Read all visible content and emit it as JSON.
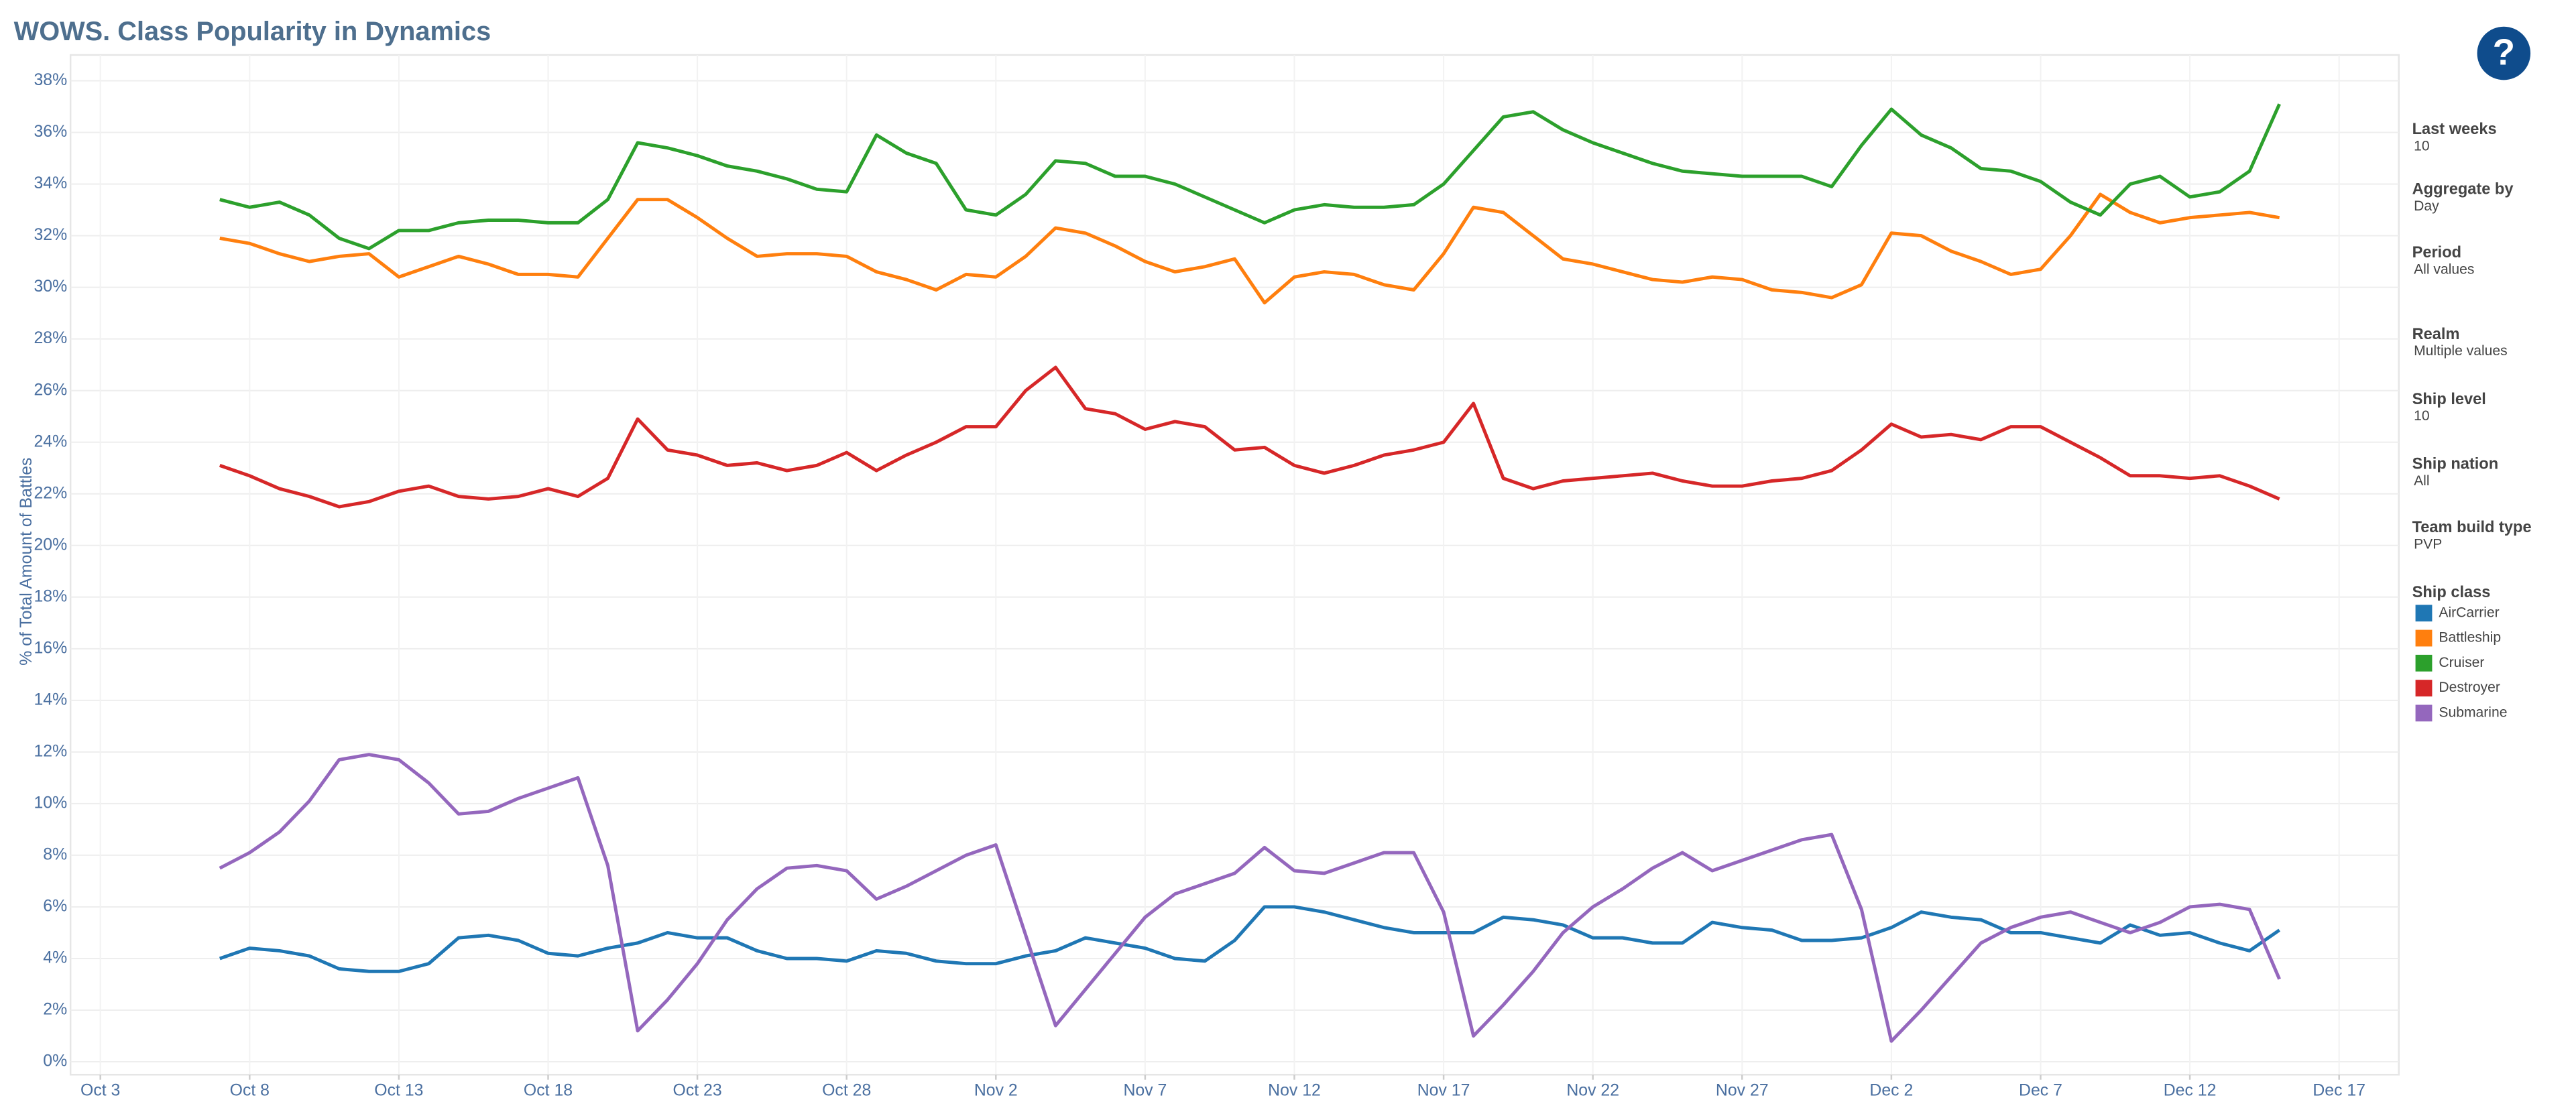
{
  "chart_data": {
    "type": "line",
    "title": "WOWS. Class Popularity in Dynamics",
    "y_label": "% of Total Amount of Battles",
    "x": [
      "Oct 7",
      "Oct 8",
      "Oct 9",
      "Oct 10",
      "Oct 11",
      "Oct 12",
      "Oct 13",
      "Oct 14",
      "Oct 15",
      "Oct 16",
      "Oct 17",
      "Oct 18",
      "Oct 19",
      "Oct 20",
      "Oct 21",
      "Oct 22",
      "Oct 23",
      "Oct 24",
      "Oct 25",
      "Oct 26",
      "Oct 27",
      "Oct 28",
      "Oct 29",
      "Oct 30",
      "Oct 31",
      "Nov 1",
      "Nov 2",
      "Nov 3",
      "Nov 4",
      "Nov 5",
      "Nov 6",
      "Nov 7",
      "Nov 8",
      "Nov 9",
      "Nov 10",
      "Nov 11",
      "Nov 12",
      "Nov 13",
      "Nov 14",
      "Nov 15",
      "Nov 16",
      "Nov 17",
      "Nov 18",
      "Nov 19",
      "Nov 20",
      "Nov 21",
      "Nov 22",
      "Nov 23",
      "Nov 24",
      "Nov 25",
      "Nov 26",
      "Nov 27",
      "Nov 28",
      "Nov 29",
      "Nov 30",
      "Dec 1",
      "Dec 2",
      "Dec 3",
      "Dec 4",
      "Dec 5",
      "Dec 6",
      "Dec 7",
      "Dec 8",
      "Dec 9",
      "Dec 10",
      "Dec 11",
      "Dec 12",
      "Dec 13",
      "Dec 14",
      "Dec 15"
    ],
    "xlim": [
      "Oct 2",
      "Dec 19"
    ],
    "xticks": [
      "Oct 3",
      "Oct 8",
      "Oct 13",
      "Oct 18",
      "Oct 23",
      "Oct 28",
      "Nov 2",
      "Nov 7",
      "Nov 12",
      "Nov 17",
      "Nov 22",
      "Nov 27",
      "Dec 2",
      "Dec 7",
      "Dec 12",
      "Dec 17"
    ],
    "ylim": [
      -0.5,
      39
    ],
    "yticks": [
      {
        "value": 0,
        "label": "0%"
      },
      {
        "value": 2,
        "label": "2%"
      },
      {
        "value": 4,
        "label": "4%"
      },
      {
        "value": 6,
        "label": "6%"
      },
      {
        "value": 8,
        "label": "8%"
      },
      {
        "value": 10,
        "label": "10%"
      },
      {
        "value": 12,
        "label": "12%"
      },
      {
        "value": 14,
        "label": "14%"
      },
      {
        "value": 16,
        "label": "16%"
      },
      {
        "value": 18,
        "label": "18%"
      },
      {
        "value": 20,
        "label": "20%"
      },
      {
        "value": 22,
        "label": "22%"
      },
      {
        "value": 24,
        "label": "24%"
      },
      {
        "value": 26,
        "label": "26%"
      },
      {
        "value": 28,
        "label": "28%"
      },
      {
        "value": 30,
        "label": "30%"
      },
      {
        "value": 32,
        "label": "32%"
      },
      {
        "value": 34,
        "label": "34%"
      },
      {
        "value": 36,
        "label": "36%"
      },
      {
        "value": 38,
        "label": "38%"
      }
    ],
    "grid": true,
    "legend_title": "Ship class",
    "series": [
      {
        "name": "AirCarrier",
        "color": "#1f77b4",
        "values": [
          4.0,
          4.4,
          4.3,
          4.1,
          3.6,
          3.5,
          3.5,
          3.8,
          4.8,
          4.9,
          4.7,
          4.2,
          4.1,
          4.4,
          4.6,
          5.0,
          4.8,
          4.8,
          4.3,
          4.0,
          4.0,
          3.9,
          4.3,
          4.2,
          3.9,
          3.8,
          3.8,
          4.1,
          4.3,
          4.8,
          4.6,
          4.4,
          4.0,
          3.9,
          4.7,
          6.0,
          6.0,
          5.8,
          5.5,
          5.2,
          5.0,
          5.0,
          5.0,
          5.6,
          5.5,
          5.3,
          4.8,
          4.8,
          4.6,
          4.6,
          5.4,
          5.2,
          5.1,
          4.7,
          4.7,
          4.8,
          5.2,
          5.8,
          5.6,
          5.5,
          5.0,
          5.0,
          4.8,
          4.6,
          5.3,
          4.9,
          5.0,
          4.6,
          4.3,
          5.1
        ]
      },
      {
        "name": "Battleship",
        "color": "#ff7f0e",
        "values": [
          31.9,
          31.7,
          31.3,
          31.0,
          31.2,
          31.3,
          30.4,
          30.8,
          31.2,
          30.9,
          30.5,
          30.5,
          30.4,
          31.9,
          33.4,
          33.4,
          32.7,
          31.9,
          31.2,
          31.3,
          31.3,
          31.2,
          30.6,
          30.3,
          29.9,
          30.5,
          30.4,
          31.2,
          32.3,
          32.1,
          31.6,
          31.0,
          30.6,
          30.8,
          31.1,
          29.4,
          30.4,
          30.6,
          30.5,
          30.1,
          29.9,
          31.3,
          33.1,
          32.9,
          32.0,
          31.1,
          30.9,
          30.6,
          30.3,
          30.2,
          30.4,
          30.3,
          29.9,
          29.8,
          29.6,
          30.1,
          32.1,
          32.0,
          31.4,
          31.0,
          30.5,
          30.7,
          32.0,
          33.6,
          32.9,
          32.5,
          32.7,
          32.8,
          32.9,
          32.7
        ]
      },
      {
        "name": "Cruiser",
        "color": "#2ca02c",
        "values": [
          33.4,
          33.1,
          33.3,
          32.8,
          31.9,
          31.5,
          32.2,
          32.2,
          32.5,
          32.6,
          32.6,
          32.5,
          32.5,
          33.4,
          35.6,
          35.4,
          35.1,
          34.7,
          34.5,
          34.2,
          33.8,
          33.7,
          35.9,
          35.2,
          34.8,
          33.0,
          32.8,
          33.6,
          34.9,
          34.8,
          34.3,
          34.3,
          34.0,
          33.5,
          33.0,
          32.5,
          33.0,
          33.2,
          33.1,
          33.1,
          33.2,
          34.0,
          35.3,
          36.6,
          36.8,
          36.1,
          35.6,
          35.2,
          34.8,
          34.5,
          34.4,
          34.3,
          34.3,
          34.3,
          33.9,
          35.5,
          36.9,
          35.9,
          35.4,
          34.6,
          34.5,
          34.1,
          33.3,
          32.8,
          34.0,
          34.3,
          33.5,
          33.7,
          34.5,
          37.1
        ]
      },
      {
        "name": "Destroyer",
        "color": "#d62728",
        "values": [
          23.1,
          22.7,
          22.2,
          21.9,
          21.5,
          21.7,
          22.1,
          22.3,
          21.9,
          21.8,
          21.9,
          22.2,
          21.9,
          22.6,
          24.9,
          23.7,
          23.5,
          23.1,
          23.2,
          22.9,
          23.1,
          23.6,
          22.9,
          23.5,
          24.0,
          24.6,
          24.6,
          26.0,
          26.9,
          25.3,
          25.1,
          24.5,
          24.8,
          24.6,
          23.7,
          23.8,
          23.1,
          22.8,
          23.1,
          23.5,
          23.7,
          24.0,
          25.5,
          22.6,
          22.2,
          22.5,
          22.6,
          22.7,
          22.8,
          22.5,
          22.3,
          22.3,
          22.5,
          22.6,
          22.9,
          23.7,
          24.7,
          24.2,
          24.3,
          24.1,
          24.6,
          24.6,
          24.0,
          23.4,
          22.7,
          22.7,
          22.6,
          22.7,
          22.3,
          21.8
        ]
      },
      {
        "name": "Submarine",
        "color": "#9467bd",
        "values": [
          7.5,
          8.1,
          8.9,
          10.1,
          11.7,
          11.9,
          11.7,
          10.8,
          9.6,
          9.7,
          10.2,
          10.6,
          11.0,
          7.6,
          1.2,
          2.4,
          3.8,
          5.5,
          6.7,
          7.5,
          7.6,
          7.4,
          6.3,
          6.8,
          7.4,
          8.0,
          8.4,
          4.9,
          1.4,
          2.8,
          4.2,
          5.6,
          6.5,
          6.9,
          7.3,
          8.3,
          7.4,
          7.3,
          7.7,
          8.1,
          8.1,
          5.8,
          1.0,
          2.2,
          3.5,
          5.0,
          6.0,
          6.7,
          7.5,
          8.1,
          7.4,
          7.8,
          8.2,
          8.6,
          8.8,
          5.9,
          0.8,
          2.0,
          3.3,
          4.6,
          5.2,
          5.6,
          5.8,
          5.4,
          5.0,
          5.4,
          6.0,
          6.1,
          5.9,
          3.2
        ]
      }
    ]
  },
  "help_icon": "?",
  "filters": [
    {
      "label": "Last weeks",
      "value": "10"
    },
    {
      "label": "Aggregate by",
      "value": "Day"
    },
    {
      "label": "Period",
      "value": "All values"
    },
    {
      "label": "Realm",
      "value": "Multiple values"
    },
    {
      "label": "Ship level",
      "value": "10"
    },
    {
      "label": "Ship nation",
      "value": "All"
    },
    {
      "label": "Team build type",
      "value": "PVP"
    }
  ]
}
